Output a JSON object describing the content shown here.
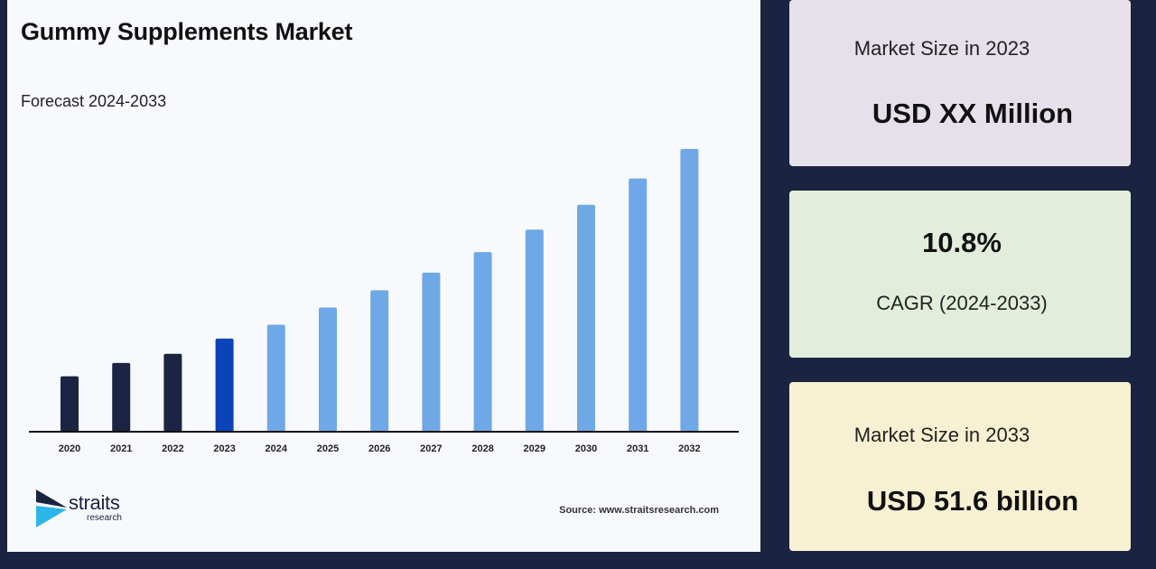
{
  "chart_data": {
    "type": "bar",
    "title": "Gummy Supplements Market",
    "subtitle": "Forecast 2024-2033",
    "categories": [
      "2020",
      "2021",
      "2022",
      "2023",
      "2024",
      "2025",
      "2026",
      "2027",
      "2028",
      "2029",
      "2030",
      "2031",
      "2032"
    ],
    "values": [
      11.6,
      14.4,
      16.3,
      19.5,
      22.4,
      26.0,
      29.6,
      33.3,
      37.6,
      42.3,
      47.5,
      53.0,
      59.2
    ],
    "ylim": [
      0,
      62
    ],
    "grid": false,
    "colors": {
      "historical": "#1b2442",
      "base_year": "#0a44b8",
      "forecast": "#6fa8e6"
    },
    "bar_kinds": [
      "historical",
      "historical",
      "historical",
      "base_year",
      "forecast",
      "forecast",
      "forecast",
      "forecast",
      "forecast",
      "forecast",
      "forecast",
      "forecast",
      "forecast"
    ]
  },
  "branding": {
    "logo_word": "straits",
    "logo_sub": "research",
    "source": "Source: www.straitsresearch.com"
  },
  "stats": {
    "size_2023_label": "Market Size in 2023",
    "size_2023_value": "USD XX Million",
    "cagr_value": "10.8%",
    "cagr_label": "CAGR (2024-2033)",
    "size_2033_label": "Market Size in 2033",
    "size_2033_value": "USD 51.6 billion"
  }
}
